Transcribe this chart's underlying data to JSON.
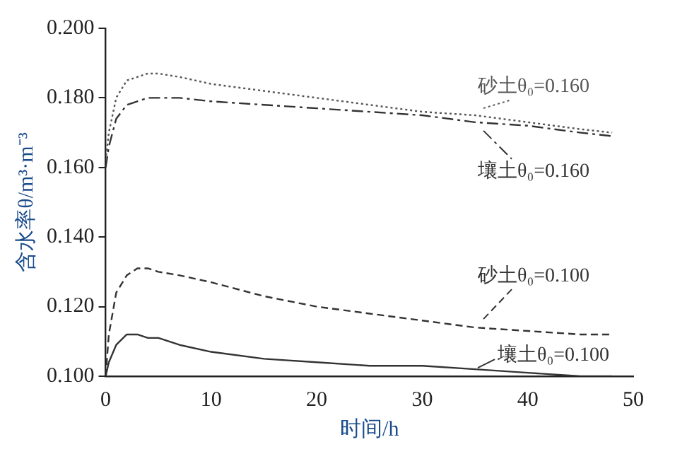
{
  "chart_data": {
    "type": "line",
    "xlabel": "时间/h",
    "ylabel": "含水率θ/m³·m⁻³",
    "x": [
      0,
      0.3,
      1,
      2,
      3,
      4,
      5,
      7,
      10,
      15,
      20,
      25,
      30,
      35,
      40,
      45,
      48
    ],
    "series": [
      {
        "name": "砂土θ₀=0.160",
        "color": "#555555",
        "line_style": "dotted",
        "values": [
          0.162,
          0.17,
          0.18,
          0.185,
          0.186,
          0.187,
          0.187,
          0.186,
          0.184,
          0.182,
          0.18,
          0.178,
          0.176,
          0.175,
          0.173,
          0.171,
          0.17
        ]
      },
      {
        "name": "壤土θ₀=0.160",
        "color": "#333333",
        "line_style": "dashdot",
        "values": [
          0.16,
          0.166,
          0.174,
          0.178,
          0.179,
          0.18,
          0.18,
          0.18,
          0.179,
          0.178,
          0.177,
          0.176,
          0.175,
          0.173,
          0.172,
          0.17,
          0.169
        ]
      },
      {
        "name": "砂土θ₀=0.100",
        "color": "#333333",
        "line_style": "dashed",
        "values": [
          0.1,
          0.112,
          0.124,
          0.129,
          0.131,
          0.131,
          0.13,
          0.129,
          0.127,
          0.123,
          0.12,
          0.118,
          0.116,
          0.114,
          0.113,
          0.112,
          0.112
        ]
      },
      {
        "name": "壤土θ₀=0.100",
        "color": "#333333",
        "line_style": "solid",
        "values": [
          0.1,
          0.104,
          0.109,
          0.112,
          0.112,
          0.111,
          0.111,
          0.109,
          0.107,
          0.105,
          0.104,
          0.103,
          0.103,
          0.102,
          0.101,
          0.1,
          0.1
        ]
      }
    ],
    "xlim": [
      0,
      50
    ],
    "xticks": [
      0,
      10,
      20,
      30,
      40,
      50
    ],
    "ylim": [
      0.1,
      0.2
    ],
    "yticks": [
      {
        "value": 0.1,
        "label": "0.100"
      },
      {
        "value": 0.12,
        "label": "0.120"
      },
      {
        "value": 0.14,
        "label": "0.140"
      },
      {
        "value": 0.16,
        "label": "0.160"
      },
      {
        "value": 0.18,
        "label": "0.180"
      },
      {
        "value": 0.2,
        "label": "0.200"
      }
    ],
    "grid": false,
    "legend": "right",
    "marker": "none"
  }
}
